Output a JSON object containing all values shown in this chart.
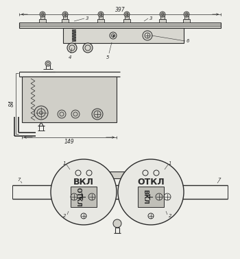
{
  "bg_color": "#f0f0eb",
  "line_color": "#2a2a2a",
  "dim_397": "397",
  "dim_149": "149",
  "dim_84": "84",
  "label_3a": "3",
  "label_3b": "3",
  "label_4": "4",
  "label_5": "5",
  "label_6": "6",
  "label_1a": "1",
  "label_1b": "1",
  "label_2a": "2",
  "label_2b": "2",
  "label_7a": "7",
  "label_7b": "7",
  "text_vkl_top": "ВКЛ",
  "text_otkl_top": "ОТКЛ",
  "text_otkl_bottom": "ОТКЛ",
  "text_vkl_bottom": "ВКЛ",
  "font_size_labels": 5.0,
  "font_size_text": 9,
  "font_size_dim": 5.5
}
